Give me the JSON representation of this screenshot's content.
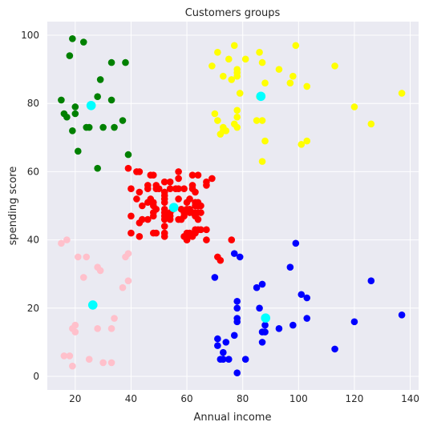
{
  "chart_data": {
    "type": "scatter",
    "title": "Customers groups",
    "xlabel": "Annual income",
    "ylabel": "spending score",
    "xlim": [
      10,
      143
    ],
    "ylim": [
      -4,
      104
    ],
    "xticks": [
      20,
      40,
      60,
      80,
      100,
      120,
      140
    ],
    "yticks": [
      0,
      20,
      40,
      60,
      80,
      100
    ],
    "grid": true,
    "background": "#eaeaf2",
    "series": [
      {
        "color": "#ff0000",
        "points": [
          [
            39,
            61
          ],
          [
            40,
            55
          ],
          [
            40,
            47
          ],
          [
            40,
            42
          ],
          [
            42,
            60
          ],
          [
            42,
            52
          ],
          [
            43,
            60
          ],
          [
            43,
            54
          ],
          [
            43,
            45
          ],
          [
            43,
            41
          ],
          [
            44,
            50
          ],
          [
            44,
            46
          ],
          [
            46,
            56
          ],
          [
            46,
            55
          ],
          [
            46,
            51
          ],
          [
            46,
            46
          ],
          [
            47,
            59
          ],
          [
            47,
            52
          ],
          [
            48,
            59
          ],
          [
            48,
            51
          ],
          [
            48,
            50
          ],
          [
            48,
            48
          ],
          [
            48,
            47
          ],
          [
            48,
            42
          ],
          [
            49,
            56
          ],
          [
            49,
            55
          ],
          [
            49,
            49
          ],
          [
            49,
            42
          ],
          [
            50,
            55
          ],
          [
            52,
            57
          ],
          [
            52,
            54
          ],
          [
            52,
            53
          ],
          [
            52,
            52
          ],
          [
            52,
            51
          ],
          [
            52,
            49
          ],
          [
            52,
            48
          ],
          [
            52,
            47
          ],
          [
            52,
            46
          ],
          [
            52,
            44
          ],
          [
            52,
            42
          ],
          [
            52,
            41
          ],
          [
            54,
            57
          ],
          [
            54,
            55
          ],
          [
            54,
            48
          ],
          [
            54,
            47
          ],
          [
            54,
            46
          ],
          [
            55,
            49
          ],
          [
            56,
            55
          ],
          [
            57,
            60
          ],
          [
            57,
            58
          ],
          [
            57,
            55
          ],
          [
            57,
            52
          ],
          [
            57,
            46
          ],
          [
            58,
            49
          ],
          [
            58,
            46
          ],
          [
            59,
            55
          ],
          [
            59,
            48
          ],
          [
            59,
            47
          ],
          [
            59,
            41
          ],
          [
            60,
            51
          ],
          [
            60,
            49
          ],
          [
            60,
            42
          ],
          [
            60,
            41
          ],
          [
            60,
            40
          ],
          [
            61,
            52
          ],
          [
            61,
            49
          ],
          [
            61,
            48
          ],
          [
            61,
            42
          ],
          [
            62,
            59
          ],
          [
            62,
            56
          ],
          [
            62,
            55
          ],
          [
            62,
            48
          ],
          [
            62,
            41
          ],
          [
            63,
            54
          ],
          [
            63,
            51
          ],
          [
            63,
            50
          ],
          [
            63,
            47
          ],
          [
            63,
            43
          ],
          [
            63,
            42
          ],
          [
            63,
            48
          ],
          [
            64,
            59
          ],
          [
            64,
            51
          ],
          [
            64,
            50
          ],
          [
            64,
            48
          ],
          [
            64,
            46
          ],
          [
            64,
            43
          ],
          [
            64,
            50
          ],
          [
            65,
            50
          ],
          [
            65,
            48
          ],
          [
            65,
            43
          ],
          [
            67,
            57
          ],
          [
            67,
            56
          ],
          [
            67,
            43
          ],
          [
            67,
            40
          ],
          [
            69,
            58
          ],
          [
            71,
            35
          ],
          [
            72,
            34
          ],
          [
            76,
            40
          ],
          [
            60,
            40
          ]
        ]
      },
      {
        "color": "#ffff00",
        "points": [
          [
            69,
            91
          ],
          [
            70,
            77
          ],
          [
            71,
            95
          ],
          [
            71,
            75
          ],
          [
            72,
            71
          ],
          [
            73,
            88
          ],
          [
            73,
            73
          ],
          [
            73,
            72
          ],
          [
            74,
            72
          ],
          [
            75,
            93
          ],
          [
            76,
            87
          ],
          [
            77,
            97
          ],
          [
            77,
            74
          ],
          [
            78,
            90
          ],
          [
            78,
            89
          ],
          [
            78,
            88
          ],
          [
            78,
            78
          ],
          [
            78,
            76
          ],
          [
            78,
            73
          ],
          [
            79,
            83
          ],
          [
            81,
            93
          ],
          [
            85,
            75
          ],
          [
            86,
            95
          ],
          [
            86,
            82
          ],
          [
            87,
            92
          ],
          [
            87,
            75
          ],
          [
            87,
            63
          ],
          [
            88,
            86
          ],
          [
            88,
            69
          ],
          [
            93,
            90
          ],
          [
            97,
            86
          ],
          [
            98,
            88
          ],
          [
            99,
            97
          ],
          [
            101,
            68
          ],
          [
            103,
            85
          ],
          [
            103,
            69
          ],
          [
            113,
            91
          ],
          [
            120,
            79
          ],
          [
            126,
            74
          ],
          [
            137,
            83
          ]
        ]
      },
      {
        "color": "#0000ff",
        "points": [
          [
            70,
            29
          ],
          [
            71,
            11
          ],
          [
            71,
            9
          ],
          [
            72,
            5
          ],
          [
            73,
            7
          ],
          [
            73,
            5
          ],
          [
            74,
            10
          ],
          [
            75,
            5
          ],
          [
            77,
            36
          ],
          [
            77,
            12
          ],
          [
            78,
            22
          ],
          [
            78,
            20
          ],
          [
            78,
            17
          ],
          [
            78,
            16
          ],
          [
            78,
            1
          ],
          [
            79,
            35
          ],
          [
            81,
            5
          ],
          [
            85,
            26
          ],
          [
            86,
            20
          ],
          [
            87,
            27
          ],
          [
            87,
            13
          ],
          [
            87,
            10
          ],
          [
            88,
            15
          ],
          [
            88,
            13
          ],
          [
            93,
            14
          ],
          [
            97,
            32
          ],
          [
            98,
            15
          ],
          [
            99,
            39
          ],
          [
            101,
            24
          ],
          [
            103,
            23
          ],
          [
            103,
            17
          ],
          [
            113,
            8
          ],
          [
            120,
            16
          ],
          [
            126,
            28
          ],
          [
            137,
            18
          ]
        ]
      },
      {
        "color": "#ffc0cb",
        "points": [
          [
            15,
            39
          ],
          [
            16,
            6
          ],
          [
            17,
            40
          ],
          [
            18,
            6
          ],
          [
            19,
            3
          ],
          [
            19,
            14
          ],
          [
            20,
            15
          ],
          [
            20,
            13
          ],
          [
            21,
            35
          ],
          [
            23,
            29
          ],
          [
            24,
            35
          ],
          [
            25,
            5
          ],
          [
            28,
            14
          ],
          [
            28,
            32
          ],
          [
            29,
            31
          ],
          [
            30,
            4
          ],
          [
            33,
            4
          ],
          [
            33,
            14
          ],
          [
            34,
            17
          ],
          [
            37,
            26
          ],
          [
            38,
            35
          ],
          [
            39,
            36
          ],
          [
            39,
            28
          ]
        ]
      },
      {
        "color": "#008000",
        "points": [
          [
            15,
            81
          ],
          [
            16,
            77
          ],
          [
            17,
            76
          ],
          [
            18,
            94
          ],
          [
            19,
            99
          ],
          [
            19,
            72
          ],
          [
            20,
            77
          ],
          [
            20,
            79
          ],
          [
            21,
            66
          ],
          [
            23,
            98
          ],
          [
            24,
            73
          ],
          [
            25,
            73
          ],
          [
            28,
            82
          ],
          [
            28,
            61
          ],
          [
            29,
            87
          ],
          [
            30,
            73
          ],
          [
            33,
            92
          ],
          [
            33,
            81
          ],
          [
            34,
            73
          ],
          [
            37,
            75
          ],
          [
            38,
            92
          ],
          [
            39,
            65
          ]
        ]
      }
    ],
    "centroids": {
      "color": "#00ffff",
      "points": [
        [
          55.3,
          49.5
        ],
        [
          86.5,
          82.1
        ],
        [
          88.2,
          17.1
        ],
        [
          26.3,
          20.9
        ],
        [
          25.7,
          79.4
        ]
      ]
    }
  }
}
